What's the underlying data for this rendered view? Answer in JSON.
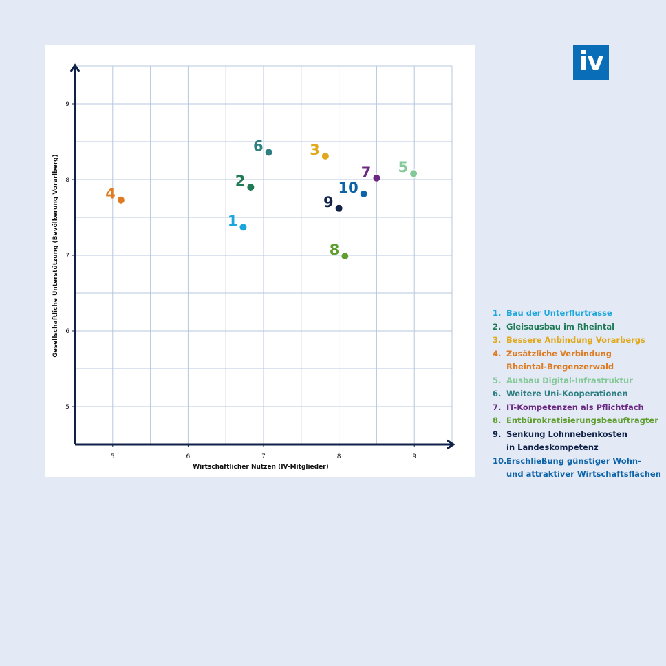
{
  "branding": {
    "logo_text": "iv",
    "logo_color": "#0a6db8"
  },
  "chart_data": {
    "type": "scatter",
    "xlabel": "Wirtschaftlicher Nutzen (IV-Mitglieder)",
    "ylabel": "Gesellschaftliche Unterstützung (Bevölkerung Vorarlberg)",
    "xlim": [
      4.5,
      9.5
    ],
    "ylim": [
      4.5,
      9.5
    ],
    "xticks": [
      5,
      6,
      7,
      8,
      9
    ],
    "yticks": [
      5,
      6,
      7,
      8,
      9
    ],
    "grid": true,
    "points": [
      {
        "label": "1",
        "x": 6.73,
        "y": 7.37,
        "color": "#1ba6dc"
      },
      {
        "label": "2",
        "x": 6.83,
        "y": 7.9,
        "color": "#1f7a55"
      },
      {
        "label": "3",
        "x": 7.82,
        "y": 8.31,
        "color": "#e0a91c"
      },
      {
        "label": "4",
        "x": 5.11,
        "y": 7.73,
        "color": "#dd7c22"
      },
      {
        "label": "5",
        "x": 8.99,
        "y": 8.08,
        "color": "#86c999"
      },
      {
        "label": "6",
        "x": 7.07,
        "y": 8.36,
        "color": "#2e7f82"
      },
      {
        "label": "7",
        "x": 8.5,
        "y": 8.02,
        "color": "#6b2a82"
      },
      {
        "label": "8",
        "x": 8.08,
        "y": 6.99,
        "color": "#5f9e2f"
      },
      {
        "label": "9",
        "x": 8.0,
        "y": 7.62,
        "color": "#12234a"
      },
      {
        "label": "10",
        "x": 8.33,
        "y": 7.81,
        "color": "#0c63a8"
      }
    ]
  },
  "legend": {
    "items": [
      {
        "num": "1.",
        "text": "Bau der Unterflurtrasse",
        "color": "#1ba6dc"
      },
      {
        "num": "2.",
        "text": "Gleisausbau im Rheintal",
        "color": "#1f7a55"
      },
      {
        "num": "3.",
        "text": "Bessere Anbindung Vorarbergs",
        "color": "#e0a91c"
      },
      {
        "num": "4.",
        "text": "Zusätzliche Verbindung\nRheintal-Bregenzerwald",
        "color": "#dd7c22"
      },
      {
        "num": "5.",
        "text": "Ausbau Digital-Infrastruktur",
        "color": "#86c999"
      },
      {
        "num": "6.",
        "text": "Weitere Uni-Kooperationen",
        "color": "#2e7f82"
      },
      {
        "num": "7.",
        "text": "IT-Kompetenzen als Pflichtfach",
        "color": "#6b2a82"
      },
      {
        "num": "8.",
        "text": "Entbürokratisierungsbeauftragter",
        "color": "#5f9e2f"
      },
      {
        "num": "9.",
        "text": "Senkung Lohnnebenkosten\nin Landeskompetenz",
        "color": "#12234a"
      },
      {
        "num": "10.",
        "text": "Erschließung günstiger Wohn-\nund attraktiver Wirtschaftsflächen",
        "color": "#0c63a8"
      }
    ]
  }
}
